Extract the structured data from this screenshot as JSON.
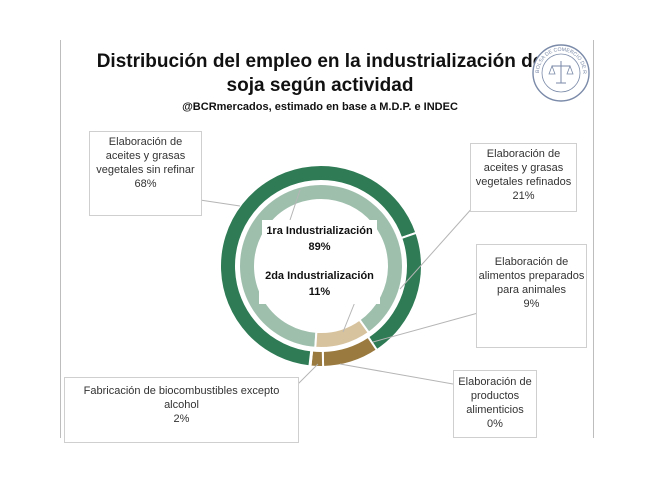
{
  "chart_data": {
    "type": "pie",
    "title": "Distribución del empleo en la industrialización de soja según actividad",
    "subtitle": "@BCRmercados, estimado en base a M.D.P. e INDEC",
    "outer_ring": {
      "slices": [
        {
          "label": "Elaboración de aceites y grasas vegetales sin refinar",
          "value": 68,
          "value_label": "68%",
          "color": "#2e7b55"
        },
        {
          "label": "Elaboración de aceites y grasas vegetales refinados",
          "value": 21,
          "value_label": "21%",
          "color": "#2e7b55"
        },
        {
          "label": "Elaboración de alimentos preparados para animales",
          "value": 9,
          "value_label": "9%",
          "color": "#9a7a3e"
        },
        {
          "label": "Fabricación de biocombustibles excepto alcohol",
          "value": 2,
          "value_label": "2%",
          "color": "#9a7a3e"
        },
        {
          "label": "Elaboración de productos alimenticios",
          "value": 0,
          "value_label": "0%",
          "color": "#9a7a3e"
        }
      ]
    },
    "inner_ring": {
      "slices": [
        {
          "label": "1ra Industrialización",
          "value": 89,
          "value_label": "89%",
          "color": "#9fbfad"
        },
        {
          "label": "2da Industrialización",
          "value": 11,
          "value_label": "11%",
          "color": "#d7c39e"
        }
      ]
    }
  },
  "seal": {
    "text": "BOLSA DE COMERCIO DE ROSARIO",
    "color": "#7a8aa8"
  }
}
